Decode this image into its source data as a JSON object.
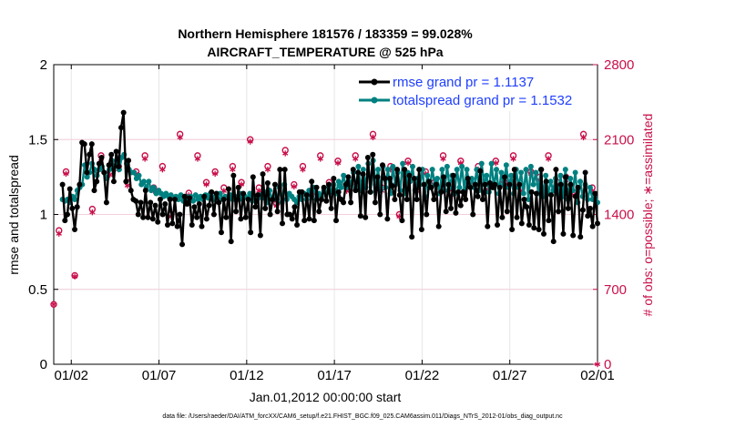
{
  "chart_data": {
    "type": "line",
    "title_line1": "Northern Hemisphere 181576 / 183359 = 99.028%",
    "title_line2": "AIRCRAFT_TEMPERATURE @ 525 hPa",
    "ylabel_left": "rmse and totalspread",
    "ylabel_right": "# of obs: o=possible; ∗=assimilated",
    "xlabel": "Jan.01,2012 00:00:00 start",
    "footer": "data file: /Users/raeder/DAI/ATM_forcXX/CAM6_setup/f.e21.FHIST_BGC.f09_025.CAM6assim.011/Diags_NTrS_2012-01/obs_diag_output.nc",
    "xlim": [
      0,
      31
    ],
    "ylim_left": [
      0,
      2
    ],
    "ylim_right": [
      0,
      2800
    ],
    "x_ticks": [
      1,
      6,
      11,
      16,
      21,
      26,
      31
    ],
    "x_tick_labels": [
      "01/02",
      "01/07",
      "01/12",
      "01/17",
      "01/22",
      "01/27",
      "02/01"
    ],
    "y_left_ticks": [
      0,
      0.5,
      1,
      1.5,
      2
    ],
    "y_left_tick_labels": [
      "0",
      "0.5",
      "1",
      "1.5",
      "2"
    ],
    "y_right_ticks": [
      0,
      700,
      1400,
      2100,
      2800
    ],
    "y_right_tick_labels": [
      "0",
      "700",
      "1400",
      "2100",
      "2800"
    ],
    "colors": {
      "rmse": "#000000",
      "totalspread": "#008080",
      "obs": "#c8104a",
      "legend_text": "#1f3fff"
    },
    "series": [
      {
        "name": "rmse grand pr = 1.1137",
        "values": [
          1.2,
          0.96,
          1.0,
          1.17,
          1.04,
          0.9,
          1.05,
          1.2,
          1.48,
          1.47,
          1.28,
          1.4,
          1.47,
          1.16,
          1.22,
          1.34,
          1.38,
          1.28,
          1.08,
          1.33,
          1.4,
          1.22,
          1.42,
          1.32,
          1.58,
          1.68,
          1.22,
          1.36,
          1.16,
          1.1,
          1.09,
          1.0,
          1.08,
          0.98,
          1.16,
          0.98,
          1.08,
          0.97,
          1.06,
          0.95,
          1.1,
          1.0,
          1.07,
          0.93,
          1.1,
          0.94,
          1.1,
          0.92,
          1.0,
          0.8,
          1.12,
          1.07,
          1.11,
          0.93,
          1.05,
          0.98,
          1.07,
          0.92,
          1.12,
          0.97,
          1.06,
          1.15,
          1.0,
          1.14,
          1.08,
          0.88,
          1.1,
          0.98,
          1.17,
          0.82,
          1.26,
          1.02,
          1.18,
          0.97,
          1.14,
          0.98,
          1.1,
          0.88,
          1.25,
          1.05,
          1.13,
          0.86,
          1.27,
          1.04,
          1.21,
          1.0,
          1.1,
          1.2,
          1.02,
          1.3,
          0.94,
          1.3,
          1.0,
          1.0,
          0.97,
          1.05,
          0.93,
          1.15,
          1.15,
          0.96,
          1.13,
          0.97,
          1.22,
          0.96,
          1.18,
          1.02,
          1.1,
          1.18,
          1.09,
          1.2,
          1.04,
          1.24,
          0.96,
          1.15,
          1.1,
          1.08,
          1.2,
          1.25,
          1.08,
          1.3,
          1.16,
          1.28,
          0.99,
          1.27,
          0.98,
          1.38,
          1.15,
          1.4,
          1.08,
          1.25,
          1.0,
          1.33,
          1.24,
          0.97,
          1.24,
          1.19,
          1.1,
          1.3,
          1.13,
          0.96,
          1.3,
          1.1,
          1.26,
          0.85,
          1.24,
          1.1,
          1.3,
          0.9,
          1.2,
          1.0,
          1.22,
          1.18,
          1.1,
          1.2,
          0.92,
          1.15,
          1.25,
          1.02,
          1.2,
          1.04,
          1.26,
          1.01,
          1.15,
          1.06,
          1.15,
          1.1,
          1.24,
          1.18,
          1.0,
          1.2,
          1.12,
          1.29,
          1.1,
          1.2,
          0.92,
          1.21,
          1.18,
          1.2,
          0.93,
          1.18,
          0.98,
          1.25,
          1.02,
          1.2,
          0.9,
          1.3,
          0.98,
          1.2,
          0.94,
          1.1,
          1.05,
          0.93,
          1.15,
          0.91,
          1.14,
          0.9,
          1.3,
          0.87,
          1.22,
          0.96,
          1.13,
          0.82,
          1.3,
          1.02,
          1.2,
          0.87,
          1.25,
          1.04,
          1.2,
          0.86,
          1.12,
          1.18,
          0.85,
          1.03,
          1.28,
          0.99,
          1.04,
          0.92,
          1.14,
          0.94
        ]
      },
      {
        "name": "totalspread grand pr = 1.1532",
        "values": [
          1.1,
          1.09,
          1.1,
          1.08,
          1.12,
          1.1,
          1.16,
          1.18,
          1.2,
          1.33,
          1.25,
          1.28,
          1.34,
          1.3,
          1.26,
          1.3,
          1.32,
          1.28,
          1.24,
          1.3,
          1.36,
          1.32,
          1.36,
          1.3,
          1.38,
          1.4,
          1.34,
          1.3,
          1.28,
          1.28,
          1.24,
          1.26,
          1.2,
          1.22,
          1.18,
          1.22,
          1.16,
          1.18,
          1.14,
          1.16,
          1.14,
          1.12,
          1.14,
          1.12,
          1.13,
          1.11,
          1.12,
          1.1,
          1.13,
          1.09,
          1.12,
          1.1,
          1.12,
          1.09,
          1.13,
          1.1,
          1.12,
          1.1,
          1.13,
          1.11,
          1.14,
          1.1,
          1.12,
          1.11,
          1.14,
          1.1,
          1.12,
          1.11,
          1.13,
          1.1,
          1.12,
          1.1,
          1.14,
          1.1,
          1.12,
          1.11,
          1.14,
          1.09,
          1.12,
          1.1,
          1.13,
          1.11,
          1.15,
          1.08,
          1.16,
          1.1,
          1.12,
          1.1,
          1.18,
          1.08,
          1.2,
          1.1,
          1.14,
          1.12,
          1.1,
          1.08,
          1.12,
          1.1,
          1.14,
          1.1,
          1.16,
          1.12,
          1.18,
          1.1,
          1.14,
          1.12,
          1.16,
          1.14,
          1.18,
          1.15,
          1.2,
          1.14,
          1.22,
          1.18,
          1.26,
          1.18,
          1.22,
          1.2,
          1.28,
          1.18,
          1.32,
          1.16,
          1.3,
          1.18,
          1.34,
          1.15,
          1.36,
          1.2,
          1.3,
          1.16,
          1.32,
          1.18,
          1.3,
          1.14,
          1.32,
          1.2,
          1.28,
          1.16,
          1.34,
          1.14,
          1.28,
          1.22,
          1.32,
          1.16,
          1.24,
          1.2,
          1.3,
          1.12,
          1.26,
          1.18,
          1.3,
          1.2,
          1.24,
          1.14,
          1.3,
          1.16,
          1.32,
          1.18,
          1.26,
          1.14,
          1.3,
          1.18,
          1.32,
          1.16,
          1.3,
          1.2,
          1.24,
          1.18,
          1.3,
          1.16,
          1.34,
          1.2,
          1.26,
          1.15,
          1.34,
          1.18,
          1.3,
          1.14,
          1.28,
          1.2,
          1.33,
          1.18,
          1.26,
          1.14,
          1.3,
          1.18,
          1.28,
          1.14,
          1.3,
          1.1,
          1.32,
          1.2,
          1.28,
          1.14,
          1.3,
          1.12,
          1.26,
          1.14,
          1.22,
          1.16,
          1.24,
          1.14,
          1.26,
          1.12,
          1.3,
          1.1,
          1.24,
          1.16,
          1.28,
          1.08,
          1.22,
          1.12,
          1.2,
          1.1,
          1.18,
          1.1,
          1.14,
          1.08
        ]
      }
    ],
    "obs_possible_x": [
      0,
      0.3,
      0.7,
      1.2,
      2.2,
      2.7,
      3.2,
      3.7,
      4.2,
      4.7,
      5.2,
      5.7,
      6.2,
      6.7,
      7.2,
      7.7,
      8.2,
      8.7,
      9.2,
      9.7,
      10.2,
      10.7,
      11.2,
      11.7,
      12.2,
      12.7,
      13.2,
      13.7,
      14.2,
      14.7,
      15.2,
      15.7,
      16.2,
      16.7,
      17.2,
      17.7,
      18.2,
      18.7,
      19.2,
      19.7,
      20.2,
      20.7,
      21.2,
      21.7,
      22.2,
      22.7,
      23.2,
      23.7,
      24.2,
      24.7,
      25.2,
      25.7,
      26.2,
      26.7,
      27.2,
      27.7,
      28.2,
      28.7,
      29.2,
      29.7,
      30.2,
      30.7
    ],
    "obs_possible_y": [
      560,
      1250,
      1800,
      830,
      1450,
      1950,
      1800,
      1850,
      1700,
      1800,
      1950,
      1650,
      1850,
      1400,
      2150,
      1600,
      1950,
      1700,
      1800,
      1650,
      1850,
      1700,
      2100,
      1650,
      1850,
      1500,
      2000,
      1680,
      1850,
      1600,
      1950,
      1700,
      1900,
      1650,
      1950,
      1700,
      2150,
      1650,
      1850,
      1400,
      1900,
      1650,
      1800,
      1700,
      1950,
      1600,
      1900,
      1700,
      1850,
      1650,
      1900,
      1700,
      1950,
      1650,
      1800,
      1750,
      1950,
      1700,
      1750,
      1600,
      2150,
      1650
    ],
    "obs_assim_x": [
      0,
      0.3,
      0.7,
      1.2,
      2.2,
      2.7,
      3.2,
      3.7,
      4.2,
      4.7,
      5.2,
      5.7,
      6.2,
      6.7,
      7.2,
      7.7,
      8.2,
      8.7,
      9.2,
      9.7,
      10.2,
      10.7,
      11.2,
      11.7,
      12.2,
      12.7,
      13.2,
      13.7,
      14.2,
      14.7,
      15.2,
      15.7,
      16.2,
      16.7,
      17.2,
      17.7,
      18.2,
      18.7,
      19.2,
      19.7,
      20.2,
      20.7,
      21.2,
      21.7,
      22.2,
      22.7,
      23.2,
      23.7,
      24.2,
      24.7,
      25.2,
      25.7,
      26.2,
      26.7,
      27.2,
      27.7,
      28.2,
      28.7,
      29.2,
      29.7,
      30.2,
      30.7,
      31
    ],
    "obs_assim_y": [
      560,
      1220,
      1780,
      820,
      1420,
      1920,
      1770,
      1820,
      1670,
      1780,
      1920,
      1620,
      1820,
      1380,
      2120,
      1580,
      1920,
      1680,
      1780,
      1620,
      1820,
      1680,
      2080,
      1620,
      1820,
      1480,
      1970,
      1660,
      1820,
      1580,
      1920,
      1680,
      1880,
      1620,
      1920,
      1680,
      2120,
      1620,
      1820,
      1380,
      1880,
      1620,
      1780,
      1680,
      1920,
      1580,
      1880,
      1680,
      1820,
      1620,
      1880,
      1680,
      1920,
      1620,
      1780,
      1720,
      1920,
      1680,
      1720,
      1580,
      2120,
      1620,
      0
    ]
  },
  "legend": {
    "rmse_label": "rmse grand pr = 1.1137",
    "spread_label": "totalspread grand pr = 1.1532"
  }
}
